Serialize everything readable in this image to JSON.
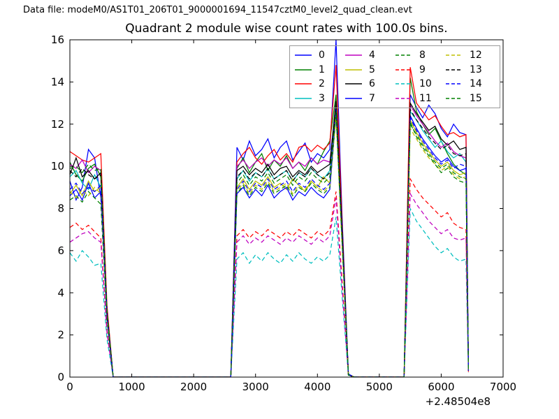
{
  "header": {
    "text": "Data file: modeM0/AS1T01_206T01_9000001694_11547cztM0_level2_quad_clean.evt"
  },
  "chart_data": {
    "type": "line",
    "title": "Quadrant 2 module wise count rates with 100.0s bins.",
    "xlabel": "",
    "ylabel": "",
    "x_offset_label": "+2.48504e8",
    "xlim": [
      0,
      7000
    ],
    "ylim": [
      0,
      16
    ],
    "xticks": [
      0,
      1000,
      2000,
      3000,
      4000,
      5000,
      6000,
      7000
    ],
    "yticks": [
      0,
      2,
      4,
      6,
      8,
      10,
      12,
      14,
      16
    ],
    "grid": false,
    "legend_position": "upper center-right",
    "legend_columns": 4,
    "frame_color": "#000000",
    "legend_border_color": "#9a9a9a",
    "x": [
      0,
      100,
      200,
      300,
      400,
      500,
      600,
      700,
      1200,
      1700,
      2200,
      2600,
      2700,
      2800,
      2900,
      3000,
      3100,
      3200,
      3300,
      3400,
      3500,
      3600,
      3700,
      3800,
      3900,
      4000,
      4100,
      4200,
      4300,
      4400,
      4500,
      4600,
      5000,
      5400,
      5500,
      5600,
      5700,
      5800,
      5900,
      6000,
      6100,
      6200,
      6300,
      6400,
      6440
    ],
    "series": [
      {
        "name": "0",
        "color": "#0000ff",
        "style": "solid",
        "values": [
          9.3,
          8.4,
          9.0,
          10.8,
          10.4,
          8.5,
          3.0,
          0,
          0,
          0,
          0,
          0,
          10.9,
          10.3,
          11.2,
          10.5,
          10.8,
          11.3,
          10.4,
          10.9,
          11.2,
          10.3,
          10.7,
          11.1,
          10.2,
          10.6,
          10.4,
          10.8,
          16.0,
          7.5,
          0.15,
          0,
          0,
          0,
          13.4,
          12.8,
          12.3,
          12.9,
          12.5,
          11.8,
          11.4,
          12.0,
          11.6,
          11.5,
          0.35
        ]
      },
      {
        "name": "1",
        "color": "#008000",
        "style": "solid",
        "values": [
          10.2,
          9.6,
          9.3,
          9.9,
          10.1,
          9.5,
          3.2,
          0,
          0,
          0,
          0,
          0,
          9.9,
          10.4,
          9.7,
          10.2,
          10.6,
          9.8,
          10.3,
          10.0,
          10.5,
          9.9,
          10.2,
          9.8,
          10.4,
          10.1,
          10.7,
          11.2,
          13.4,
          7.0,
          0.1,
          0,
          0,
          0,
          14.2,
          12.6,
          12.0,
          11.5,
          11.8,
          11.2,
          10.6,
          10.1,
          9.8,
          9.6,
          0.3
        ]
      },
      {
        "name": "2",
        "color": "#ff0000",
        "style": "solid",
        "values": [
          10.7,
          10.5,
          10.3,
          10.2,
          10.4,
          10.6,
          3.4,
          0,
          0,
          0,
          0,
          0,
          10.2,
          10.6,
          10.9,
          10.4,
          10.1,
          10.5,
          10.8,
          10.3,
          10.6,
          10.2,
          10.9,
          11.0,
          10.7,
          11.0,
          10.8,
          11.1,
          14.8,
          7.2,
          0.1,
          0,
          0,
          0,
          14.7,
          13.0,
          12.6,
          12.2,
          12.4,
          11.9,
          11.5,
          11.6,
          11.4,
          11.5,
          0.3
        ]
      },
      {
        "name": "3",
        "color": "#00bfbf",
        "style": "solid",
        "values": [
          9.5,
          9.8,
          9.2,
          8.9,
          9.6,
          9.0,
          3.0,
          0,
          0,
          0,
          0,
          0,
          9.4,
          9.8,
          9.3,
          9.7,
          9.5,
          9.9,
          9.4,
          9.6,
          9.8,
          9.3,
          9.7,
          9.5,
          9.9,
          9.6,
          9.4,
          9.8,
          12.8,
          6.6,
          0.1,
          0,
          0,
          0,
          12.6,
          12.2,
          11.7,
          11.3,
          10.9,
          11.2,
          10.7,
          10.4,
          10.6,
          10.2,
          0.3
        ]
      },
      {
        "name": "4",
        "color": "#bf00bf",
        "style": "solid",
        "values": [
          10.1,
          9.9,
          10.3,
          9.7,
          10.0,
          9.8,
          3.1,
          0,
          0,
          0,
          0,
          0,
          10.0,
          10.3,
          9.9,
          10.2,
          10.4,
          10.0,
          10.3,
          10.1,
          10.4,
          9.9,
          10.2,
          10.0,
          10.4,
          10.1,
          10.3,
          10.2,
          13.0,
          6.8,
          0.1,
          0,
          0,
          0,
          12.9,
          12.4,
          12.0,
          11.6,
          11.2,
          10.9,
          11.1,
          10.7,
          10.5,
          10.4,
          0.3
        ]
      },
      {
        "name": "5",
        "color": "#bfbf00",
        "style": "solid",
        "values": [
          8.7,
          9.1,
          8.6,
          9.3,
          8.8,
          9.0,
          2.9,
          0,
          0,
          0,
          0,
          0,
          9.0,
          9.4,
          8.9,
          9.3,
          9.1,
          9.5,
          9.0,
          9.2,
          8.9,
          9.4,
          9.1,
          8.8,
          9.3,
          9.0,
          9.5,
          9.2,
          12.6,
          6.4,
          0.1,
          0,
          0,
          0,
          12.2,
          11.6,
          11.1,
          10.7,
          10.3,
          10.0,
          10.2,
          9.8,
          9.6,
          9.7,
          0.3
        ]
      },
      {
        "name": "6",
        "color": "#000000",
        "style": "solid",
        "values": [
          9.6,
          10.4,
          9.5,
          9.8,
          9.4,
          9.7,
          3.1,
          0,
          0,
          0,
          0,
          0,
          9.8,
          10.0,
          9.6,
          9.9,
          9.7,
          10.1,
          9.6,
          9.9,
          10.0,
          9.5,
          9.8,
          9.6,
          10.0,
          9.7,
          9.9,
          10.1,
          13.1,
          6.9,
          0.1,
          0,
          0,
          0,
          13.0,
          12.5,
          12.1,
          11.7,
          11.9,
          11.3,
          11.0,
          11.2,
          10.8,
          10.9,
          0.3
        ]
      },
      {
        "name": "7",
        "color": "#0000ff",
        "style": "solid",
        "values": [
          8.6,
          8.9,
          8.4,
          9.2,
          8.5,
          8.8,
          2.8,
          0,
          0,
          0,
          0,
          0,
          8.7,
          9.0,
          8.5,
          8.9,
          8.6,
          9.1,
          8.5,
          8.8,
          9.0,
          8.4,
          8.8,
          8.6,
          9.0,
          8.7,
          8.5,
          8.9,
          12.5,
          6.3,
          0.1,
          0,
          0,
          0,
          12.4,
          11.8,
          11.3,
          10.9,
          10.5,
          10.2,
          10.4,
          10.0,
          9.8,
          9.9,
          0.3
        ]
      },
      {
        "name": "8",
        "color": "#008000",
        "style": "dashed",
        "values": [
          8.4,
          8.6,
          8.3,
          8.8,
          8.5,
          8.2,
          2.7,
          0,
          0,
          0,
          0,
          0,
          8.7,
          9.1,
          8.6,
          9.0,
          8.8,
          9.2,
          8.7,
          8.9,
          9.1,
          8.6,
          9.0,
          8.8,
          9.2,
          8.9,
          8.7,
          9.0,
          12.4,
          6.2,
          0.1,
          0,
          0,
          0,
          12.0,
          11.5,
          11.0,
          10.6,
          10.2,
          9.9,
          10.1,
          9.7,
          9.5,
          9.4,
          0.3
        ]
      },
      {
        "name": "9",
        "color": "#ff0000",
        "style": "dashed",
        "values": [
          7.1,
          7.3,
          7.0,
          7.2,
          6.9,
          6.6,
          2.2,
          0,
          0,
          0,
          0,
          0,
          6.7,
          7.0,
          6.6,
          6.9,
          6.7,
          7.0,
          6.8,
          6.6,
          6.9,
          6.7,
          7.0,
          6.8,
          6.6,
          6.9,
          6.7,
          7.0,
          8.8,
          4.5,
          0.1,
          0,
          0,
          0,
          9.4,
          8.9,
          8.5,
          8.2,
          7.9,
          7.6,
          7.8,
          7.3,
          7.1,
          7.0,
          0.25
        ]
      },
      {
        "name": "10",
        "color": "#00bfbf",
        "style": "dashed",
        "values": [
          5.9,
          5.5,
          6.0,
          5.7,
          5.3,
          5.4,
          1.8,
          0,
          0,
          0,
          0,
          0,
          5.6,
          5.9,
          5.4,
          5.8,
          5.5,
          5.9,
          5.6,
          5.4,
          5.8,
          5.5,
          5.9,
          5.6,
          5.4,
          5.7,
          5.5,
          5.8,
          7.6,
          3.8,
          0.1,
          0,
          0,
          0,
          8.0,
          7.4,
          7.0,
          6.6,
          6.2,
          5.9,
          6.1,
          5.7,
          5.5,
          5.6,
          0.2
        ]
      },
      {
        "name": "11",
        "color": "#bf00bf",
        "style": "dashed",
        "values": [
          6.4,
          6.6,
          6.8,
          6.9,
          6.6,
          6.4,
          2.1,
          0,
          0,
          0,
          0,
          0,
          6.4,
          6.7,
          6.3,
          6.6,
          6.4,
          6.7,
          6.5,
          6.3,
          6.6,
          6.4,
          6.7,
          6.5,
          6.3,
          6.6,
          6.4,
          6.7,
          8.5,
          4.2,
          0.1,
          0,
          0,
          0,
          8.7,
          8.2,
          7.8,
          7.4,
          7.1,
          6.8,
          7.0,
          6.6,
          6.5,
          6.6,
          0.25
        ]
      },
      {
        "name": "12",
        "color": "#bfbf00",
        "style": "dashed",
        "values": [
          8.8,
          8.5,
          8.9,
          8.6,
          9.0,
          8.7,
          2.8,
          0,
          0,
          0,
          0,
          0,
          8.8,
          9.2,
          8.7,
          9.1,
          8.9,
          9.3,
          8.8,
          9.0,
          9.2,
          8.7,
          9.1,
          8.9,
          9.3,
          9.0,
          8.8,
          9.1,
          12.3,
          6.1,
          0.1,
          0,
          0,
          0,
          11.8,
          11.3,
          10.8,
          10.4,
          10.1,
          9.8,
          10.0,
          9.6,
          9.4,
          9.5,
          0.3
        ]
      },
      {
        "name": "13",
        "color": "#000000",
        "style": "dashed",
        "values": [
          9.8,
          9.5,
          9.9,
          9.6,
          9.4,
          9.6,
          3.0,
          0,
          0,
          0,
          0,
          0,
          9.5,
          9.8,
          9.4,
          9.7,
          9.5,
          9.9,
          9.4,
          9.6,
          9.8,
          9.3,
          9.7,
          9.5,
          9.9,
          9.6,
          9.4,
          9.7,
          12.9,
          6.7,
          0.1,
          0,
          0,
          0,
          12.7,
          12.2,
          11.8,
          11.4,
          11.1,
          10.8,
          11.0,
          10.6,
          10.5,
          10.6,
          0.3
        ]
      },
      {
        "name": "14",
        "color": "#0000ff",
        "style": "dashed",
        "values": [
          8.9,
          9.2,
          8.7,
          9.0,
          8.8,
          9.1,
          2.9,
          0,
          0,
          0,
          0,
          0,
          8.9,
          9.3,
          8.8,
          9.2,
          9.0,
          9.4,
          8.9,
          9.1,
          9.3,
          8.8,
          9.2,
          9.0,
          9.4,
          9.1,
          8.9,
          9.2,
          12.7,
          6.5,
          0.1,
          0,
          0,
          0,
          12.3,
          11.7,
          11.2,
          10.8,
          10.4,
          10.1,
          10.3,
          9.9,
          10.1,
          10.0,
          0.3
        ]
      },
      {
        "name": "15",
        "color": "#008000",
        "style": "dashed",
        "values": [
          9.9,
          10.0,
          9.7,
          10.1,
          9.8,
          9.9,
          3.1,
          0,
          0,
          0,
          0,
          0,
          9.2,
          9.6,
          9.1,
          9.5,
          9.3,
          9.7,
          9.2,
          9.4,
          9.6,
          9.1,
          9.5,
          9.3,
          9.7,
          9.4,
          9.2,
          9.5,
          12.6,
          6.4,
          0.1,
          0,
          0,
          0,
          12.1,
          11.4,
          10.9,
          10.5,
          10.1,
          9.7,
          9.9,
          9.5,
          9.3,
          9.2,
          0.3
        ]
      }
    ]
  }
}
